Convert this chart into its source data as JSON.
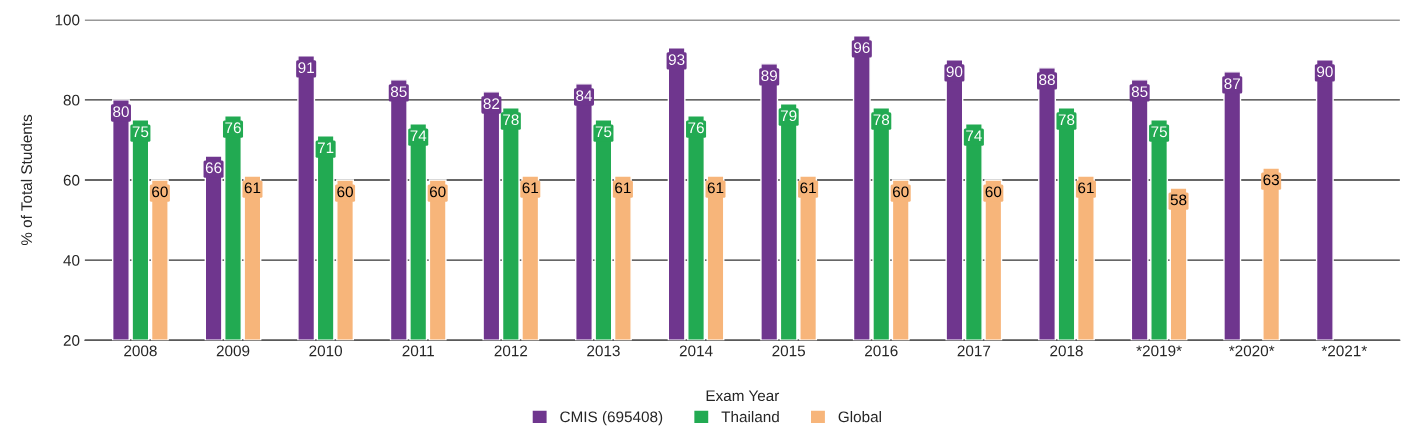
{
  "chart_data": {
    "type": "bar",
    "xlabel": "Exam Year",
    "ylabel": "% of Total Students",
    "categories": [
      "2008",
      "2009",
      "2010",
      "2011",
      "2012",
      "2013",
      "2014",
      "2015",
      "2016",
      "2017",
      "2018",
      "*2019*",
      "*2020*",
      "*2021*"
    ],
    "series": [
      {
        "name": "CMIS (695408)",
        "color": "#6f368e",
        "values": [
          80,
          66,
          91,
          85,
          82,
          84,
          93,
          89,
          96,
          90,
          88,
          85,
          87,
          90
        ]
      },
      {
        "name": "Thailand",
        "color": "#22aa52",
        "values": [
          75,
          76,
          71,
          74,
          78,
          75,
          76,
          79,
          78,
          74,
          78,
          75,
          null,
          null
        ]
      },
      {
        "name": "Global",
        "color": "#f7b57a",
        "values": [
          60,
          61,
          60,
          60,
          61,
          61,
          61,
          61,
          60,
          60,
          61,
          58,
          63,
          null
        ]
      }
    ],
    "ylim": [
      20,
      100
    ],
    "yticks": [
      20,
      40,
      60,
      80,
      100
    ],
    "grid": "y",
    "legend": "bottom",
    "data_labels": true
  }
}
